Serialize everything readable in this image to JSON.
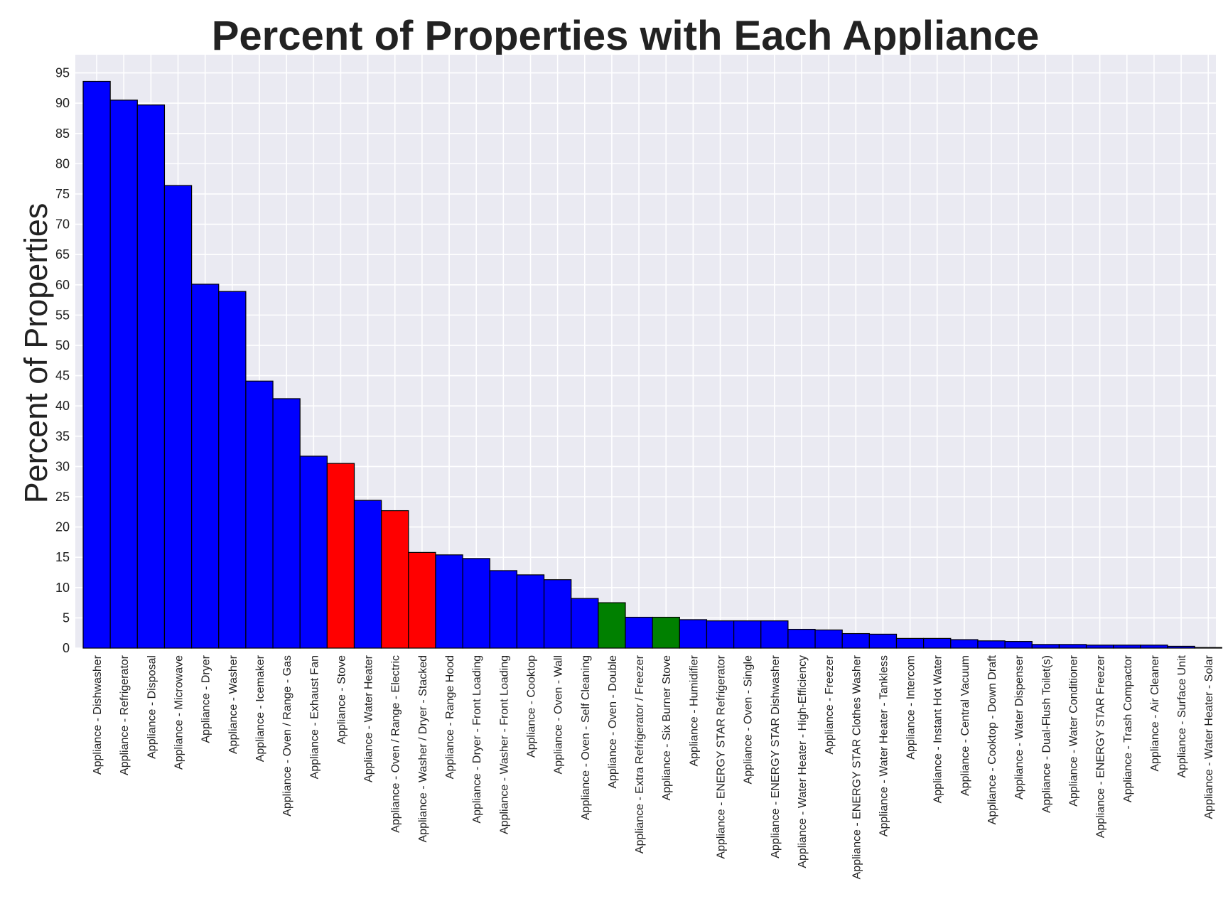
{
  "chart_data": {
    "type": "bar",
    "title": "Percent of Properties with Each Appliance",
    "xlabel": "",
    "ylabel": "Percent of Properties",
    "ylim": [
      0,
      98
    ],
    "yticks": [
      0,
      5,
      10,
      15,
      20,
      25,
      30,
      35,
      40,
      45,
      50,
      55,
      60,
      65,
      70,
      75,
      80,
      85,
      90,
      95
    ],
    "grid": true,
    "colors": {
      "blue": "#0000ff",
      "red": "#ff0000",
      "green": "#008000",
      "plot_background": "#eaeaf2",
      "grid": "#ffffff",
      "edge": "#000000"
    },
    "categories": [
      "Appliance - Dishwasher",
      "Appliance - Refrigerator",
      "Appliance - Disposal",
      "Appliance - Microwave",
      "Appliance - Dryer",
      "Appliance - Washer",
      "Appliance - Icemaker",
      "Appliance - Oven / Range - Gas",
      "Appliance - Exhaust Fan",
      "Appliance - Stove",
      "Appliance - Water Heater",
      "Appliance - Oven / Range - Electric",
      "Appliance - Washer / Dryer - Stacked",
      "Appliance - Range Hood",
      "Appliance - Dryer - Front Loading",
      "Appliance - Washer - Front Loading",
      "Appliance - Cooktop",
      "Appliance - Oven - Wall",
      "Appliance - Oven - Self Cleaning",
      "Appliance - Oven - Double",
      "Appliance - Extra Refrigerator / Freezer",
      "Appliance - Six Burner Stove",
      "Appliance - Humidifier",
      "Appliance - ENERGY STAR Refrigerator",
      "Appliance - Oven - Single",
      "Appliance - ENERGY STAR Dishwasher",
      "Appliance - Water Heater - High-Efficiency",
      "Appliance - Freezer",
      "Appliance - ENERGY STAR Clothes Washer",
      "Appliance - Water Heater - Tankless",
      "Appliance - Intercom",
      "Appliance - Instant Hot Water",
      "Appliance - Central Vacuum",
      "Appliance - Cooktop - Down Draft",
      "Appliance - Water Dispenser",
      "Appliance - Dual-Flush Toilet(s)",
      "Appliance - Water Conditioner",
      "Appliance - ENERGY STAR Freezer",
      "Appliance - Trash Compactor",
      "Appliance - Air Cleaner",
      "Appliance - Surface Unit",
      "Appliance - Water Heater - Solar"
    ],
    "values": [
      93.6,
      90.5,
      89.7,
      76.4,
      60.1,
      58.9,
      44.1,
      41.2,
      31.7,
      30.5,
      24.4,
      22.7,
      15.8,
      15.4,
      14.8,
      12.8,
      12.1,
      11.3,
      8.2,
      7.5,
      5.1,
      5.1,
      4.7,
      4.5,
      4.5,
      4.5,
      3.1,
      3.0,
      2.4,
      2.3,
      1.6,
      1.6,
      1.4,
      1.2,
      1.1,
      0.6,
      0.6,
      0.5,
      0.5,
      0.5,
      0.3,
      0.1
    ],
    "bar_colors": [
      "blue",
      "blue",
      "blue",
      "blue",
      "blue",
      "blue",
      "blue",
      "blue",
      "blue",
      "red",
      "blue",
      "red",
      "red",
      "blue",
      "blue",
      "blue",
      "blue",
      "blue",
      "blue",
      "green",
      "blue",
      "green",
      "blue",
      "blue",
      "blue",
      "blue",
      "blue",
      "blue",
      "blue",
      "blue",
      "blue",
      "blue",
      "blue",
      "blue",
      "blue",
      "blue",
      "blue",
      "blue",
      "blue",
      "blue",
      "blue",
      "blue"
    ]
  }
}
